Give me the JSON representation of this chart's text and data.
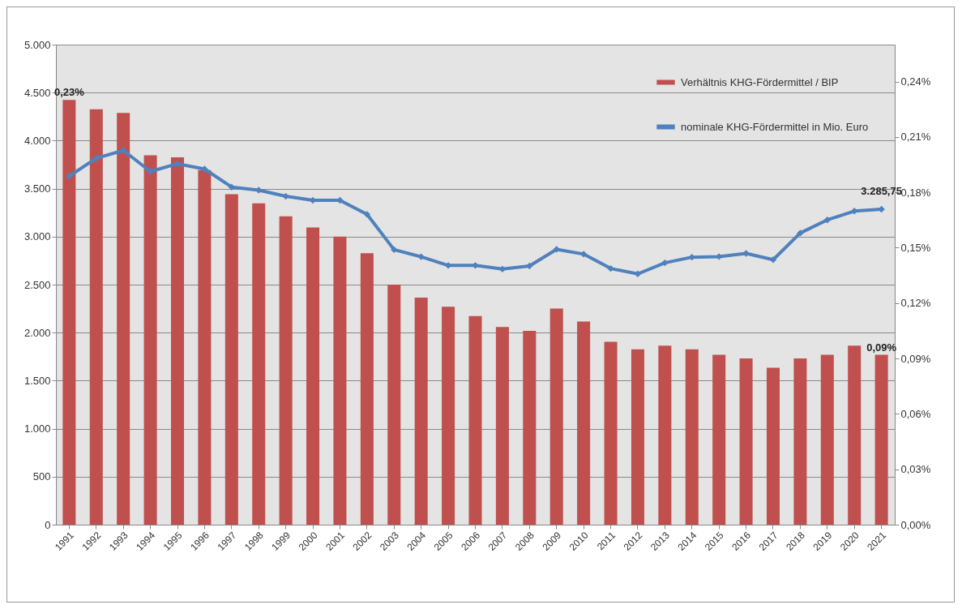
{
  "chart_data": {
    "type": "bar",
    "categories": [
      "1991",
      "1992",
      "1993",
      "1994",
      "1995",
      "1996",
      "1997",
      "1998",
      "1999",
      "2000",
      "2001",
      "2002",
      "2003",
      "2004",
      "2005",
      "2006",
      "2007",
      "2008",
      "2009",
      "2010",
      "2011",
      "2012",
      "2013",
      "2014",
      "2015",
      "2016",
      "2017",
      "2018",
      "2019",
      "2020",
      "2021"
    ],
    "series": [
      {
        "name": "Verhältnis KHG-Fördermittel / BIP",
        "axis": "y2",
        "color": "#c0504d",
        "values": [
          0.23,
          0.225,
          0.223,
          0.2,
          0.199,
          0.192,
          0.179,
          0.174,
          0.167,
          0.161,
          0.156,
          0.147,
          0.13,
          0.123,
          0.118,
          0.113,
          0.107,
          0.105,
          0.117,
          0.11,
          0.099,
          0.095,
          0.097,
          0.095,
          0.092,
          0.09,
          0.085,
          0.09,
          0.092,
          0.097,
          0.092
        ],
        "value_labels": [
          "0,23%",
          null,
          null,
          null,
          null,
          null,
          null,
          null,
          null,
          null,
          null,
          null,
          null,
          null,
          null,
          null,
          null,
          null,
          null,
          null,
          null,
          null,
          null,
          null,
          null,
          null,
          null,
          null,
          null,
          null,
          "0,09%"
        ]
      },
      {
        "name": "nominale KHG-Fördermittel in Mio. Euro",
        "type": "line",
        "color": "#4f81bd",
        "values": [
          3630,
          3817,
          3898,
          3678,
          3759,
          3704,
          3516,
          3484,
          3420,
          3378,
          3378,
          3232,
          2864,
          2790,
          2700,
          2700,
          2662,
          2694,
          2868,
          2818,
          2668,
          2612,
          2727,
          2786,
          2792,
          2825,
          2760,
          3037,
          3174,
          3266,
          3285.75
        ],
        "value_labels": [
          null,
          null,
          null,
          null,
          null,
          null,
          null,
          null,
          null,
          null,
          null,
          null,
          null,
          null,
          null,
          null,
          null,
          null,
          null,
          null,
          null,
          null,
          null,
          null,
          null,
          null,
          null,
          null,
          null,
          null,
          "3.285,75"
        ]
      }
    ],
    "ylim": [
      0,
      5000
    ],
    "yticks": [
      0,
      500,
      {
        "value": 1000,
        "label": "1.000"
      },
      {
        "value": 1500,
        "label": "1.500"
      },
      {
        "value": 2000,
        "label": "2.000"
      },
      {
        "value": 2500,
        "label": "2.500"
      },
      {
        "value": 3000,
        "label": "3.000"
      },
      {
        "value": 3500,
        "label": "3.500"
      },
      {
        "value": 4000,
        "label": "4.000"
      },
      {
        "value": 4500,
        "label": "4.500"
      },
      {
        "value": 5000,
        "label": "5.000"
      }
    ],
    "y2lim": [
      0,
      0.26
    ],
    "y2ticks": [
      {
        "value": 0,
        "label": "0,00%"
      },
      {
        "value": 0.03,
        "label": "0,03%"
      },
      {
        "value": 0.06,
        "label": "0,06%"
      },
      {
        "value": 0.09,
        "label": "0,09%"
      },
      {
        "value": 0.12,
        "label": "0,12%"
      },
      {
        "value": 0.15,
        "label": "0,15%"
      },
      {
        "value": 0.18,
        "label": "0,18%"
      },
      {
        "value": 0.21,
        "label": "0,21%"
      },
      {
        "value": 0.24,
        "label": "0,24%"
      }
    ],
    "grid": "y",
    "legend": "top right",
    "marker": "diamond",
    "line_style": "solid"
  }
}
